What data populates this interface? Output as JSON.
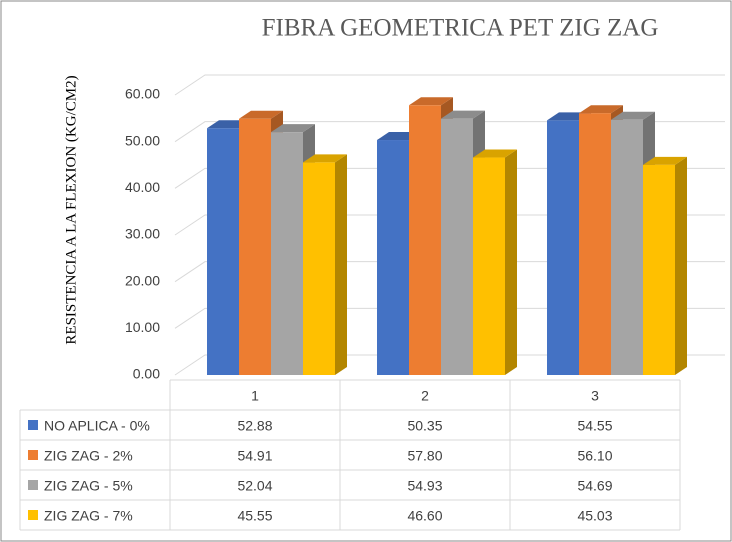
{
  "chart_data": {
    "type": "bar3d",
    "title": "FIBRA GEOMETRICA PET ZIG ZAG",
    "y_label": "RESISTENCIA A LA FLEXION (KG/CM2)",
    "categories": [
      "1",
      "2",
      "3"
    ],
    "series": [
      {
        "name": "NO APLICA - 0%",
        "color": "#4472c4",
        "values": [
          52.88,
          50.35,
          54.55
        ],
        "value_labels": [
          "52.88",
          "50.35",
          "54.55"
        ]
      },
      {
        "name": "ZIG ZAG - 2%",
        "color": "#ed7d31",
        "values": [
          54.91,
          57.8,
          56.1
        ],
        "value_labels": [
          "54.91",
          "57.80",
          "56.10"
        ]
      },
      {
        "name": "ZIG ZAG - 5%",
        "color": "#a5a5a5",
        "values": [
          52.04,
          54.93,
          54.69
        ],
        "value_labels": [
          "52.04",
          "54.93",
          "54.69"
        ]
      },
      {
        "name": "ZIG ZAG - 7%",
        "color": "#ffc000",
        "values": [
          45.55,
          46.6,
          45.03
        ],
        "value_labels": [
          "45.55",
          "46.60",
          "45.03"
        ]
      }
    ],
    "ylim": [
      0,
      60
    ],
    "yticks": [
      {
        "value": 0,
        "label": "0.00"
      },
      {
        "value": 10,
        "label": "10.00"
      },
      {
        "value": 20,
        "label": "20.00"
      },
      {
        "value": 30,
        "label": "30.00"
      },
      {
        "value": 40,
        "label": "40.00"
      },
      {
        "value": 50,
        "label": "50.00"
      },
      {
        "value": 60,
        "label": "60.00"
      }
    ],
    "grid": true
  }
}
